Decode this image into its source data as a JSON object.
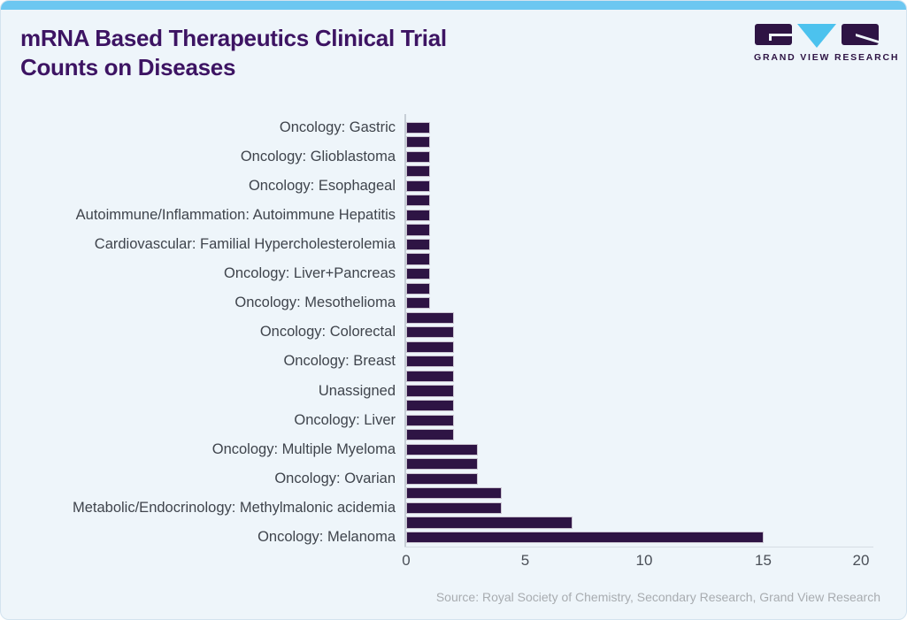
{
  "header": {
    "title_line1": "mRNA Based Therapeutics Clinical Trial",
    "title_line2": "Counts on Diseases",
    "brand": "GRAND VIEW RESEARCH"
  },
  "footer": {
    "source": "Source: Royal Society of Chemistry, Secondary Research, Grand View Research"
  },
  "colors": {
    "bar": "#2e1444",
    "title": "#3d1463",
    "accent_strip": "#6cc7f1",
    "logo_purple": "#2e1444",
    "logo_blue": "#4cc2ee",
    "background": "#eef5fa",
    "label_text": "#3f444c",
    "source_text": "#a8acb0"
  },
  "chart_data": {
    "type": "bar",
    "orientation": "horizontal",
    "title": "mRNA Based Therapeutics Clinical Trial Counts on Diseases",
    "xlabel": "",
    "ylabel": "",
    "xlim": [
      0,
      20
    ],
    "xticks": [
      0,
      5,
      10,
      15,
      20
    ],
    "grid": false,
    "legend": false,
    "note": "29 bars; every other bar carries a visible category label",
    "rows": [
      {
        "label": "Oncology: Gastric",
        "value": 1
      },
      {
        "label": "",
        "value": 1
      },
      {
        "label": "Oncology: Glioblastoma",
        "value": 1
      },
      {
        "label": "",
        "value": 1
      },
      {
        "label": "Oncology: Esophageal",
        "value": 1
      },
      {
        "label": "",
        "value": 1
      },
      {
        "label": "Autoimmune/Inflammation: Autoimmune Hepatitis",
        "value": 1
      },
      {
        "label": "",
        "value": 1
      },
      {
        "label": "Cardiovascular: Familial Hypercholesterolemia",
        "value": 1
      },
      {
        "label": "",
        "value": 1
      },
      {
        "label": "Oncology: Liver+Pancreas",
        "value": 1
      },
      {
        "label": "",
        "value": 1
      },
      {
        "label": "Oncology: Mesothelioma",
        "value": 1
      },
      {
        "label": "",
        "value": 2
      },
      {
        "label": "Oncology: Colorectal",
        "value": 2
      },
      {
        "label": "",
        "value": 2
      },
      {
        "label": "Oncology: Breast",
        "value": 2
      },
      {
        "label": "",
        "value": 2
      },
      {
        "label": "Unassigned",
        "value": 2
      },
      {
        "label": "",
        "value": 2
      },
      {
        "label": "Oncology: Liver",
        "value": 2
      },
      {
        "label": "",
        "value": 2
      },
      {
        "label": "Oncology: Multiple Myeloma",
        "value": 3
      },
      {
        "label": "",
        "value": 3
      },
      {
        "label": "Oncology: Ovarian",
        "value": 3
      },
      {
        "label": "",
        "value": 4
      },
      {
        "label": "Metabolic/Endocrinology: Methylmalonic acidemia",
        "value": 4
      },
      {
        "label": "",
        "value": 7
      },
      {
        "label": "Oncology: Melanoma",
        "value": 15
      }
    ]
  }
}
